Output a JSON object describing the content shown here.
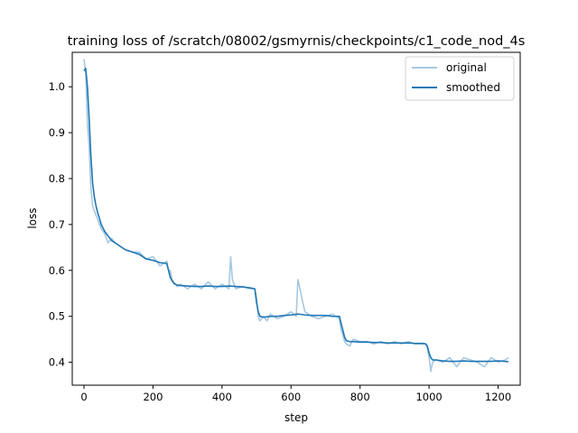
{
  "chart_data": {
    "type": "line",
    "title": "training loss of /scratch/08002/gsmyrnis/checkpoints/c1_code_nod_4s",
    "xlabel": "step",
    "ylabel": "loss",
    "xlim": [
      -34,
      1264
    ],
    "ylim": [
      0.35,
      1.075
    ],
    "xticks": [
      0,
      200,
      400,
      600,
      800,
      1000,
      1200
    ],
    "yticks": [
      0.4,
      0.5,
      0.6,
      0.7,
      0.8,
      0.9,
      1.0
    ],
    "xtick_labels": [
      "0",
      "200",
      "400",
      "600",
      "800",
      "1000",
      "1200"
    ],
    "ytick_labels": [
      "0.4",
      "0.5",
      "0.6",
      "0.7",
      "0.8",
      "0.9",
      "1.0"
    ],
    "legend_position": "top-right",
    "grid": false,
    "series": [
      {
        "name": "original",
        "color": "#a6c8e0",
        "x": [
          0,
          5,
          10,
          15,
          20,
          25,
          30,
          40,
          50,
          60,
          70,
          80,
          90,
          100,
          120,
          140,
          160,
          180,
          200,
          220,
          240,
          245,
          250,
          255,
          260,
          270,
          280,
          300,
          320,
          340,
          360,
          380,
          400,
          420,
          425,
          430,
          440,
          460,
          480,
          495,
          500,
          505,
          510,
          520,
          530,
          540,
          560,
          580,
          600,
          615,
          620,
          640,
          660,
          680,
          700,
          720,
          740,
          745,
          750,
          755,
          760,
          770,
          780,
          800,
          820,
          840,
          860,
          880,
          900,
          920,
          940,
          960,
          980,
          990,
          995,
          1000,
          1005,
          1010,
          1020,
          1040,
          1060,
          1080,
          1100,
          1120,
          1140,
          1160,
          1180,
          1200,
          1220,
          1230
        ],
        "y": [
          1.06,
          1.03,
          0.92,
          0.87,
          0.78,
          0.74,
          0.73,
          0.71,
          0.69,
          0.68,
          0.66,
          0.67,
          0.66,
          0.655,
          0.645,
          0.64,
          0.64,
          0.625,
          0.63,
          0.61,
          0.62,
          0.6,
          0.6,
          0.58,
          0.575,
          0.565,
          0.57,
          0.56,
          0.57,
          0.56,
          0.575,
          0.56,
          0.57,
          0.56,
          0.63,
          0.58,
          0.56,
          0.565,
          0.56,
          0.56,
          0.54,
          0.5,
          0.49,
          0.5,
          0.49,
          0.505,
          0.495,
          0.5,
          0.51,
          0.5,
          0.58,
          0.51,
          0.5,
          0.495,
          0.5,
          0.505,
          0.495,
          0.47,
          0.46,
          0.445,
          0.44,
          0.435,
          0.45,
          0.445,
          0.445,
          0.44,
          0.445,
          0.44,
          0.445,
          0.44,
          0.445,
          0.44,
          0.44,
          0.44,
          0.43,
          0.41,
          0.38,
          0.4,
          0.405,
          0.4,
          0.41,
          0.39,
          0.41,
          0.405,
          0.4,
          0.39,
          0.41,
          0.4,
          0.405,
          0.41
        ]
      },
      {
        "name": "smoothed",
        "color": "#1f77b4",
        "x": [
          0,
          5,
          10,
          15,
          20,
          25,
          30,
          35,
          40,
          50,
          60,
          70,
          80,
          90,
          100,
          120,
          140,
          160,
          180,
          200,
          220,
          240,
          245,
          250,
          255,
          260,
          270,
          280,
          300,
          320,
          340,
          360,
          380,
          400,
          420,
          440,
          460,
          480,
          495,
          500,
          505,
          510,
          520,
          540,
          560,
          580,
          600,
          620,
          640,
          660,
          680,
          700,
          720,
          740,
          745,
          750,
          755,
          760,
          770,
          780,
          800,
          820,
          840,
          860,
          880,
          900,
          920,
          940,
          960,
          980,
          990,
          995,
          1000,
          1005,
          1010,
          1020,
          1040,
          1060,
          1080,
          1100,
          1120,
          1140,
          1160,
          1180,
          1200,
          1220,
          1230
        ],
        "y": [
          1.035,
          1.04,
          1.0,
          0.93,
          0.85,
          0.79,
          0.76,
          0.74,
          0.725,
          0.7,
          0.685,
          0.675,
          0.665,
          0.66,
          0.655,
          0.645,
          0.64,
          0.635,
          0.625,
          0.622,
          0.617,
          0.615,
          0.6,
          0.585,
          0.578,
          0.572,
          0.568,
          0.567,
          0.566,
          0.565,
          0.565,
          0.566,
          0.565,
          0.565,
          0.566,
          0.565,
          0.564,
          0.562,
          0.56,
          0.53,
          0.51,
          0.5,
          0.498,
          0.5,
          0.5,
          0.502,
          0.503,
          0.505,
          0.503,
          0.502,
          0.502,
          0.502,
          0.5,
          0.5,
          0.485,
          0.47,
          0.455,
          0.447,
          0.445,
          0.445,
          0.444,
          0.444,
          0.443,
          0.443,
          0.442,
          0.442,
          0.442,
          0.442,
          0.441,
          0.441,
          0.44,
          0.435,
          0.42,
          0.41,
          0.405,
          0.405,
          0.403,
          0.402,
          0.402,
          0.403,
          0.402,
          0.402,
          0.402,
          0.402,
          0.403,
          0.402,
          0.401
        ]
      }
    ]
  }
}
